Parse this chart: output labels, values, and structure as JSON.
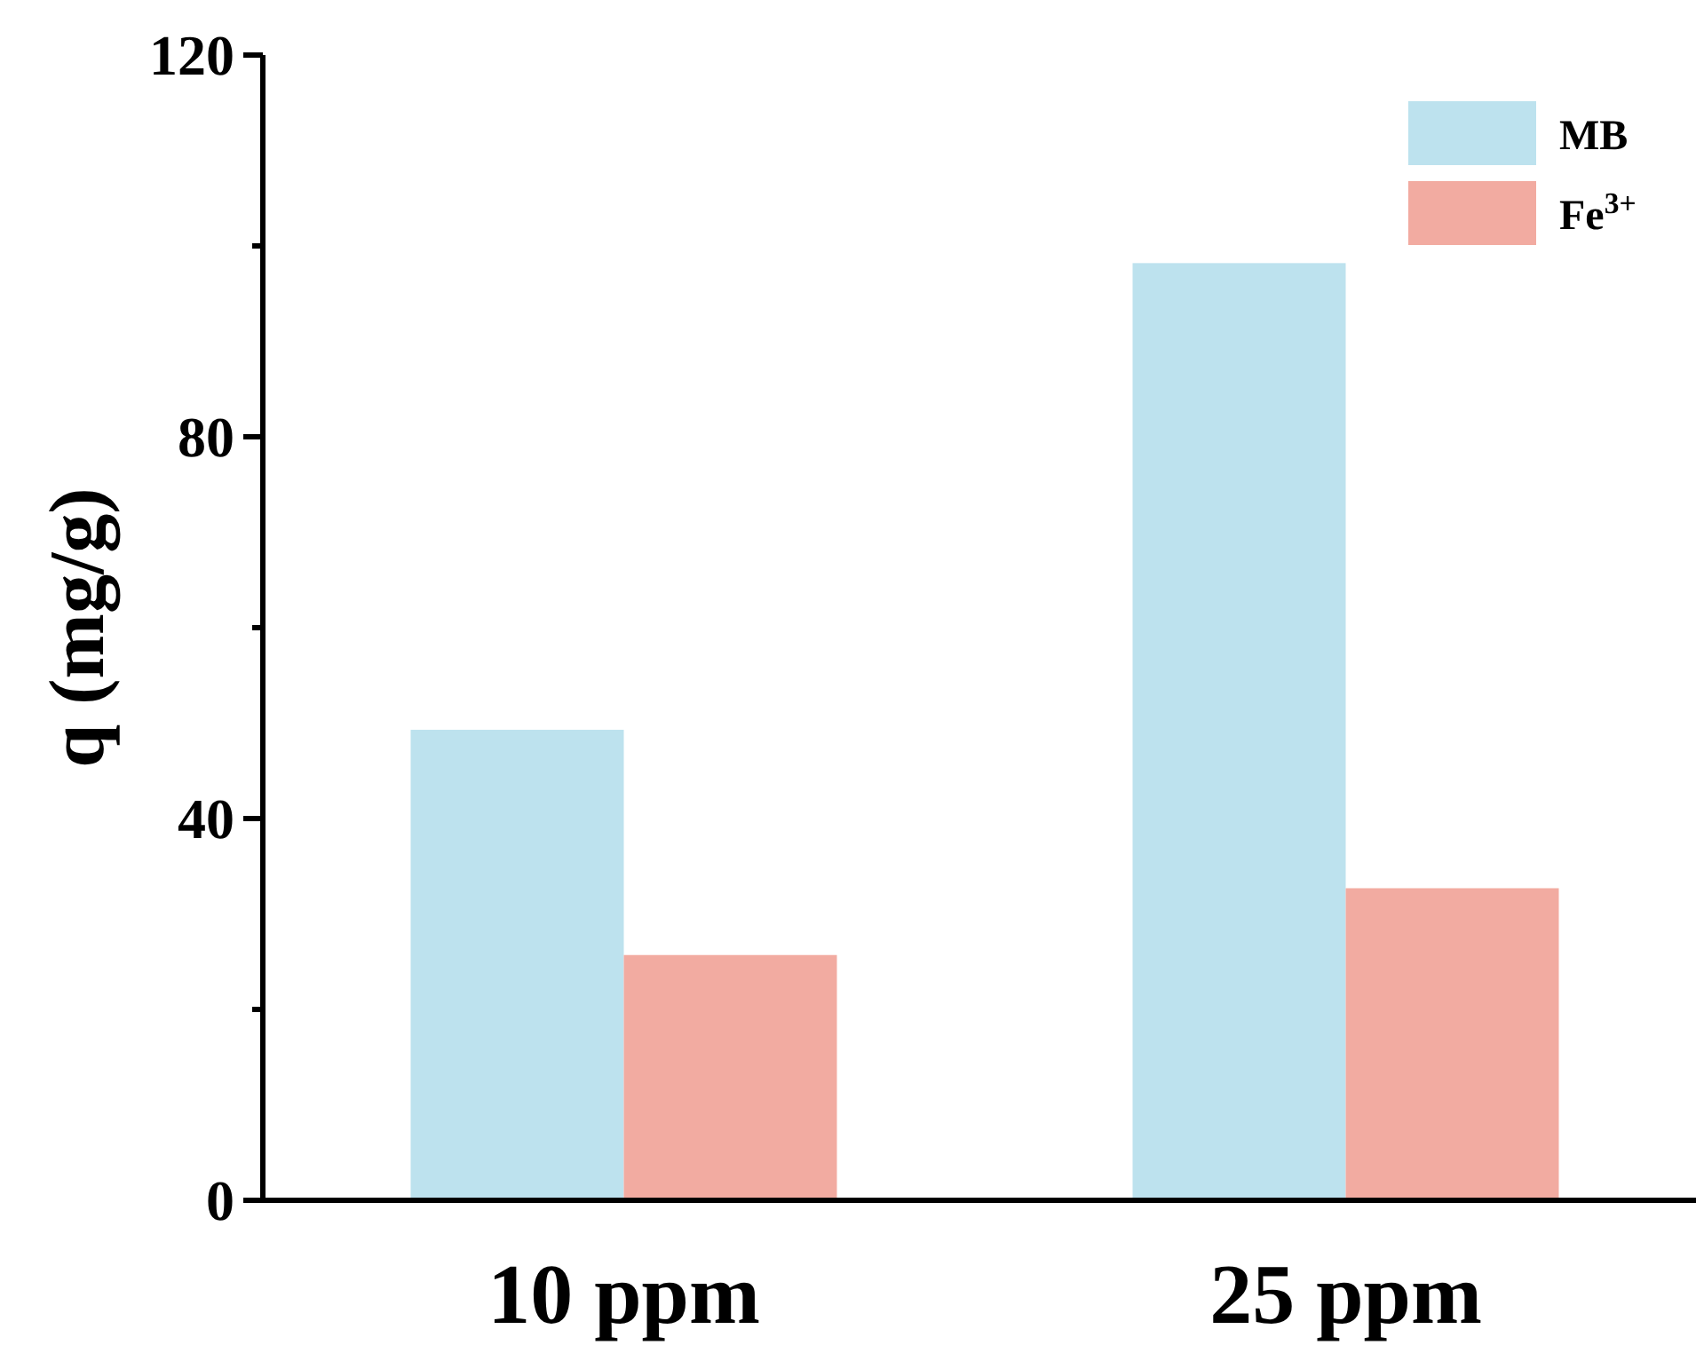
{
  "chart_data": {
    "type": "bar",
    "ylabel": "q (mg/g)",
    "categories": [
      "10 ppm",
      "25 ppm"
    ],
    "series": [
      {
        "name": "MB",
        "color": "#bde2ee",
        "values": [
          49.3,
          98.2
        ]
      },
      {
        "name": "Fe$^{3+}$",
        "color": "#f2aba1",
        "values": [
          25.7,
          32.7
        ]
      }
    ],
    "ylim": [
      0,
      120
    ],
    "yticks": [
      0,
      {
        "value": 20,
        "label": null
      },
      40,
      {
        "value": 60,
        "label": null
      },
      80,
      {
        "value": 100,
        "label": null
      },
      120
    ],
    "grid": false,
    "legend": "top right"
  }
}
